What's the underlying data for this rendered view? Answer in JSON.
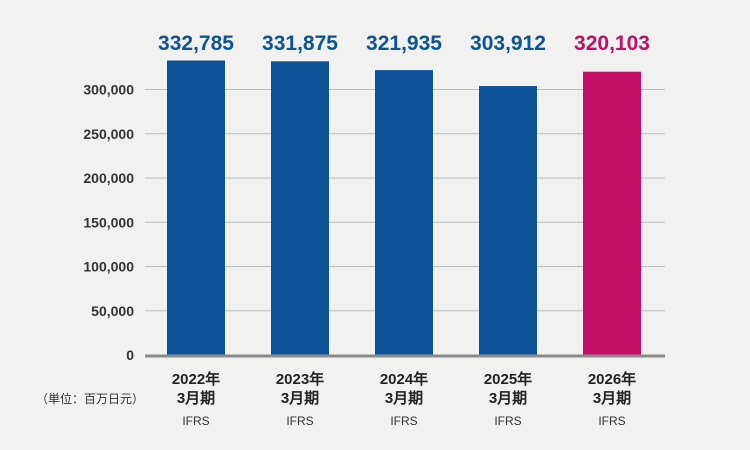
{
  "chart_data": {
    "type": "bar",
    "categories": [
      {
        "year": "2022年",
        "period": "3月期",
        "standard": "IFRS"
      },
      {
        "year": "2023年",
        "period": "3月期",
        "standard": "IFRS"
      },
      {
        "year": "2024年",
        "period": "3月期",
        "standard": "IFRS"
      },
      {
        "year": "2025年",
        "period": "3月期",
        "standard": "IFRS"
      },
      {
        "year": "2026年",
        "period": "3月期",
        "standard": "IFRS"
      }
    ],
    "values": [
      332785,
      331875,
      321935,
      303912,
      320103
    ],
    "value_labels": [
      "332,785",
      "331,875",
      "321,935",
      "303,912",
      "320,103"
    ],
    "bar_colors": [
      "#0e5398",
      "#0e5398",
      "#0e5398",
      "#0e5398",
      "#c20e64"
    ],
    "label_colors": [
      "#0e5398",
      "#0e5398",
      "#0e5398",
      "#0e5398",
      "#c20e64"
    ],
    "ylim": [
      0,
      350000
    ],
    "yticks": [
      0,
      50000,
      100000,
      150000,
      200000,
      250000,
      300000
    ],
    "ytick_labels": [
      "0",
      "50,000",
      "100,000",
      "150,000",
      "200,000",
      "250,000",
      "300,000"
    ],
    "unit_label": "（単位：百万日元）",
    "grid": true,
    "gridline_color": "#bdbdbd",
    "axis_color": "#8a8a8a"
  }
}
